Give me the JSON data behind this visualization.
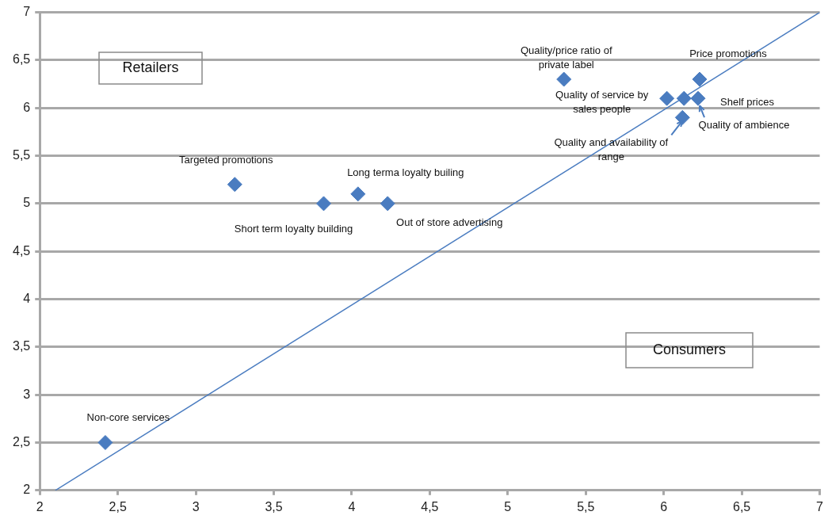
{
  "chart_data": {
    "type": "scatter",
    "xlim": [
      2,
      7
    ],
    "ylim": [
      2,
      7
    ],
    "xticks": [
      2,
      {
        "value": 2.5,
        "label": "2,5"
      },
      3,
      {
        "value": 3.5,
        "label": "3,5"
      },
      4,
      {
        "value": 4.5,
        "label": "4,5"
      },
      5,
      {
        "value": 5.5,
        "label": "5,5"
      },
      6,
      {
        "value": 6.5,
        "label": "6,5"
      },
      7
    ],
    "yticks": [
      2,
      {
        "value": 2.5,
        "label": "2,5"
      },
      3,
      {
        "value": 3.5,
        "label": "3,5"
      },
      4,
      {
        "value": 4.5,
        "label": "4,5"
      },
      5,
      {
        "value": 5.5,
        "label": "5,5"
      },
      6,
      {
        "value": 6.5,
        "label": "6,5"
      },
      7
    ],
    "grid": "y",
    "legend": false,
    "series": [
      {
        "type": "scatter",
        "color": "#4a7cc0",
        "marker": "diamond",
        "x": [
          2.42,
          3.25,
          3.82,
          4.04,
          4.23,
          5.36,
          6.23,
          6.02,
          6.22,
          6.12,
          6.13
        ],
        "values": [
          2.5,
          5.2,
          5.0,
          5.1,
          5.0,
          6.3,
          6.3,
          6.1,
          6.1,
          5.9,
          6.1
        ]
      },
      {
        "type": "line",
        "color": "#4a7cc0",
        "marker": "none",
        "x": [
          2.1,
          7
        ],
        "values": [
          2,
          7
        ]
      }
    ],
    "annotations": [
      {
        "text": "Non-core services",
        "x": 2.42,
        "y": 2.5
      },
      {
        "text": "Targeted promotions",
        "x": 3.25,
        "y": 5.2
      },
      {
        "text": "Short term loyalty building",
        "x": 3.82,
        "y": 5.0
      },
      {
        "text": "Long terma loyalty builing",
        "x": 4.04,
        "y": 5.1
      },
      {
        "text": "Out of store advertising",
        "x": 4.23,
        "y": 5.0
      },
      {
        "text": "Quality/price ratio of private label",
        "x": 5.36,
        "y": 6.3
      },
      {
        "text": "Price promotions",
        "x": 6.23,
        "y": 6.3
      },
      {
        "text": "Quality of service by sales people",
        "x": 6.02,
        "y": 6.1
      },
      {
        "text": "Shelf prices",
        "x": 6.22,
        "y": 6.1
      },
      {
        "text": "Quality and availability of range",
        "x": 6.12,
        "y": 5.9
      },
      {
        "text": "Quality of ambience",
        "x": 6.22,
        "y": 6.1
      },
      "Retailers",
      "Consumers"
    ]
  }
}
